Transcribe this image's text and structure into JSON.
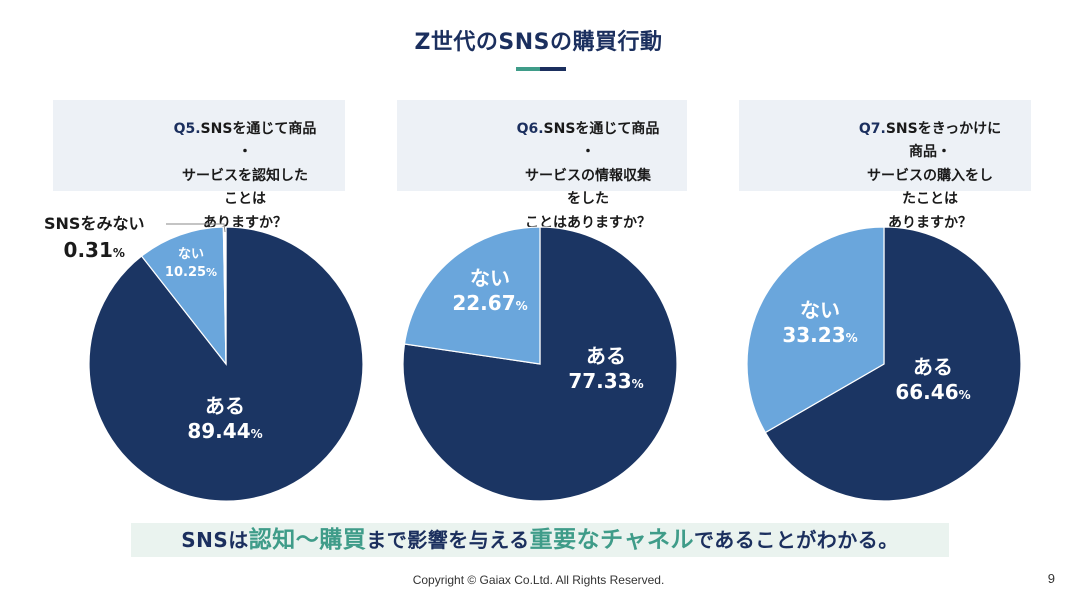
{
  "slide": {
    "title": "Z世代のSNSの購買行動",
    "title_bar_colors": [
      "#3f9c89",
      "#1b2f5e"
    ],
    "conclusion": {
      "prefix": "SNSは",
      "highlight1": "認知～購買",
      "middle": "まで影響を与える",
      "highlight2": "重要なチャネル",
      "suffix": "であることがわかる。"
    },
    "footer": "Copyright © Gaiax Co.Ltd. All Rights Reserved.",
    "page_number": "9"
  },
  "colors": {
    "dark_navy": "#1b3563",
    "light_blue": "#6aa6dc",
    "white": "#ffffff",
    "accent_teal": "#3f9c89"
  },
  "chart_data": [
    {
      "type": "pie",
      "question_number": "Q5.",
      "question_text": "SNSを通じて商品\n・\nサービスを認知した\nことは\nありますか？",
      "slices": [
        {
          "label": "ある",
          "value": 89.44,
          "value_text": "89.44",
          "color": "#1b3563"
        },
        {
          "label": "ない",
          "value": 10.25,
          "value_text": "10.25",
          "color": "#6aa6dc"
        },
        {
          "label": "SNSをみない",
          "value": 0.31,
          "value_text": "0.31",
          "color": "#ffffff"
        }
      ],
      "unit": "%"
    },
    {
      "type": "pie",
      "question_number": "Q6.",
      "question_text": "SNSを通じて商品\n・\nサービスの情報収集\nをした\nことはありますか？",
      "slices": [
        {
          "label": "ある",
          "value": 77.33,
          "value_text": "77.33",
          "color": "#1b3563"
        },
        {
          "label": "ない",
          "value": 22.67,
          "value_text": "22.67",
          "color": "#6aa6dc"
        }
      ],
      "unit": "%"
    },
    {
      "type": "pie",
      "question_number": "Q7.",
      "question_text": "SNSをきっかけに\n商品・\nサービスの購入をし\nたことは\nありますか？",
      "slices": [
        {
          "label": "ある",
          "value": 66.46,
          "value_text": "66.46",
          "color": "#1b3563"
        },
        {
          "label": "ない",
          "value": 33.23,
          "value_text": "33.23",
          "color": "#6aa6dc"
        }
      ],
      "unit": "%"
    }
  ]
}
